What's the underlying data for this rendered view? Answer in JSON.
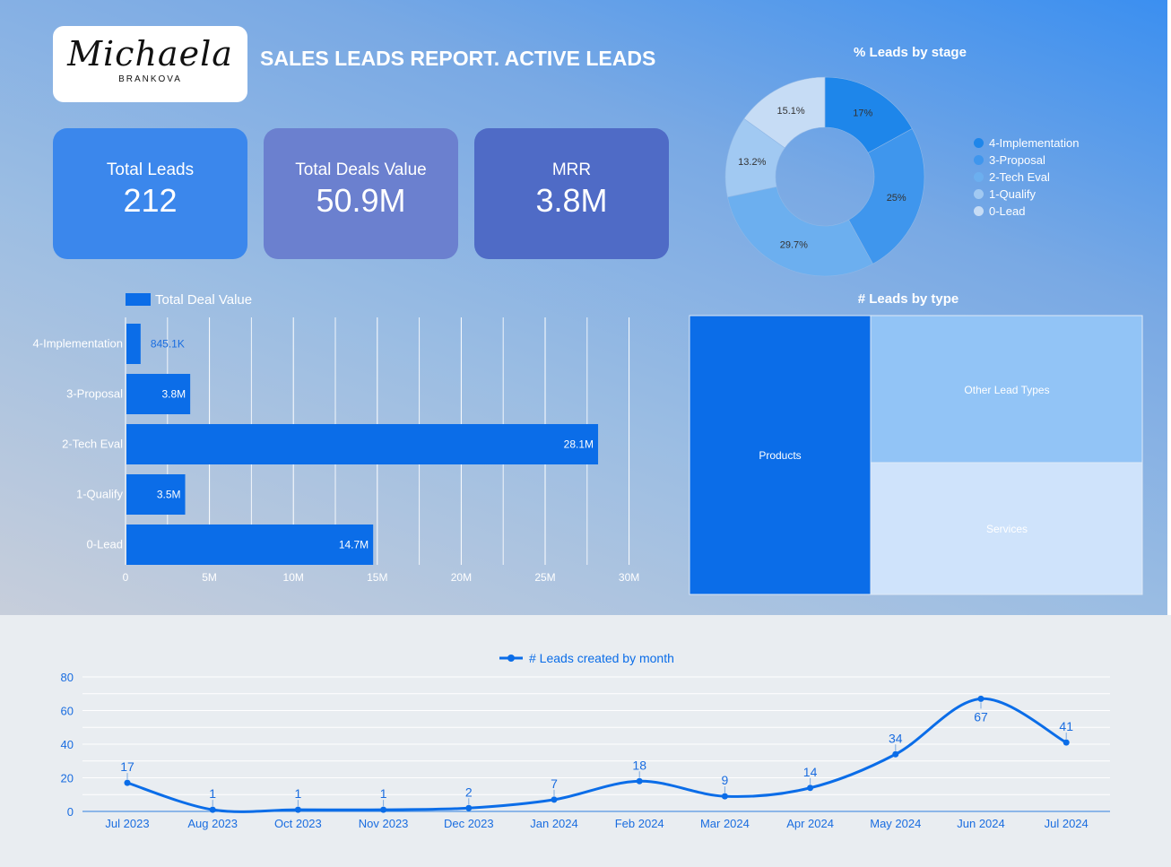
{
  "logo": {
    "script": "Michaela",
    "subtitle": "BRANKOVA"
  },
  "report_title": "SALES LEADS REPORT. ACTIVE LEADS",
  "kpis": [
    {
      "label": "Total Leads",
      "value": "212",
      "color": "#3b87ec"
    },
    {
      "label": "Total Deals Value",
      "value": "50.9M",
      "color": "#6b80cf"
    },
    {
      "label": "MRR",
      "value": "3.8M",
      "color": "#4f6bc6"
    }
  ],
  "chart_data": [
    {
      "type": "pie",
      "title": "% Leads by stage",
      "donut": true,
      "categories": [
        "4-Implementation",
        "3-Proposal",
        "2-Tech Eval",
        "1-Qualify",
        "0-Lead"
      ],
      "values": [
        17,
        25,
        29.7,
        13.2,
        15.1
      ],
      "labels": [
        "17%",
        "25%",
        "29.7%",
        "13.2%",
        "15.1%"
      ],
      "colors": [
        "#1e86ea",
        "#3f96ed",
        "#6cafef",
        "#a1c9f2",
        "#c6dcf5"
      ],
      "legend": "right"
    },
    {
      "type": "bar",
      "orientation": "horizontal",
      "title": "",
      "legend_label": "Total Deal Value",
      "categories": [
        "4-Implementation",
        "3-Proposal",
        "2-Tech Eval",
        "1-Qualify",
        "0-Lead"
      ],
      "values": [
        845100,
        3800000,
        28100000,
        3500000,
        14700000
      ],
      "data_labels": [
        "845.1K",
        "3.8M",
        "28.1M",
        "3.5M",
        "14.7M"
      ],
      "xlim": [
        0,
        30000000
      ],
      "ticks": [
        0,
        5000000,
        10000000,
        15000000,
        20000000,
        25000000,
        30000000
      ],
      "tick_labels": [
        "0",
        "5M",
        "10M",
        "15M",
        "20M",
        "25M",
        "30M"
      ],
      "color": "#0b6de8"
    },
    {
      "type": "treemap",
      "title": "# Leads by type",
      "categories": [
        "Products",
        "Other Lead Types",
        "Services"
      ],
      "colors": [
        "#0b6de8",
        "#92c4f6",
        "#cfe3fb"
      ]
    },
    {
      "type": "line",
      "title": "",
      "legend_label": "# Leads created by month",
      "categories": [
        "Jul 2023",
        "Aug 2023",
        "Oct 2023",
        "Nov 2023",
        "Dec 2023",
        "Jan 2024",
        "Feb 2024",
        "Mar 2024",
        "Apr 2024",
        "May 2024",
        "Jun 2024",
        "Jul 2024"
      ],
      "values": [
        17,
        1,
        1,
        1,
        2,
        7,
        18,
        9,
        14,
        34,
        67,
        41
      ],
      "ylim": [
        0,
        80
      ],
      "yticks": [
        0,
        20,
        40,
        60,
        80
      ],
      "color": "#0b6de8"
    }
  ]
}
